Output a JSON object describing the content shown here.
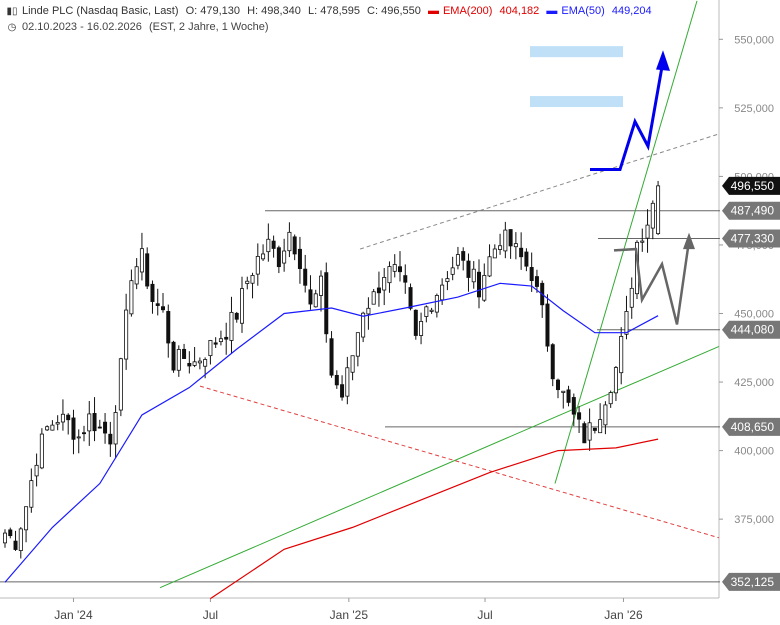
{
  "header": {
    "instrument": "Linde PLC (Nasdaq Basic, Last)",
    "open": "O: 479,130",
    "high": "H: 498,340",
    "low": "L: 478,595",
    "close": "C: 496,550",
    "ema200_label": "EMA(200)",
    "ema200_value": "404,182",
    "ema50_label": "EMA(50)",
    "ema50_value": "449,204",
    "range": "02.10.2023 - 16.02.2026",
    "info": "(EST, 2 Jahre, 1 Woche)",
    "chart_icon": "candlestick-icon",
    "clock_icon": "clock-icon"
  },
  "colors": {
    "ema200": "#e00000",
    "ema50": "#1a1aff",
    "candle": "#111111",
    "trend_green": "#33aa33",
    "support_red": "#e04040",
    "resistance_dash": "#888888",
    "level_line": "#666666",
    "projection_blue": "#0000ee",
    "projection_gray": "#666666",
    "target_box": "#bfe0f7",
    "price_tag_current": "#111111",
    "price_tag_level": "#777777"
  },
  "chart_data": {
    "type": "candlestick",
    "y_ticks": [
      "550,000",
      "525,000",
      "500,000",
      "475,000",
      "450,000",
      "425,000",
      "400,000",
      "375,000"
    ],
    "y_tick_values": [
      550,
      525,
      500,
      475,
      450,
      425,
      400,
      375
    ],
    "x_ticks": [
      "Jan '24",
      "Jul",
      "Jan '25",
      "Jul",
      "Jan '26"
    ],
    "x_tick_dates": [
      "2024-01-01",
      "2024-07-01",
      "2025-01-01",
      "2025-07-01",
      "2026-01-01"
    ],
    "x_range": [
      "2023-10-02",
      "2026-04-30"
    ],
    "y_range": [
      347,
      564
    ],
    "price_levels": [
      {
        "label": "496,550",
        "value": 496.55,
        "kind": "current"
      },
      {
        "label": "487,490",
        "value": 487.49,
        "kind": "level"
      },
      {
        "label": "477,330",
        "value": 477.33,
        "kind": "level"
      },
      {
        "label": "444,080",
        "value": 444.08,
        "kind": "level"
      },
      {
        "label": "408,650",
        "value": 408.65,
        "kind": "level"
      },
      {
        "label": "352,125",
        "value": 352.125,
        "kind": "level"
      }
    ],
    "weekly_close": [
      {
        "date": "2023-10-02",
        "close": 370
      },
      {
        "date": "2023-10-16",
        "close": 367
      },
      {
        "date": "2023-10-30",
        "close": 380
      },
      {
        "date": "2023-11-13",
        "close": 398
      },
      {
        "date": "2023-11-27",
        "close": 408
      },
      {
        "date": "2023-12-11",
        "close": 412
      },
      {
        "date": "2023-12-25",
        "close": 410
      },
      {
        "date": "2024-01-08",
        "close": 405
      },
      {
        "date": "2024-01-22",
        "close": 412
      },
      {
        "date": "2024-02-05",
        "close": 408
      },
      {
        "date": "2024-02-19",
        "close": 405
      },
      {
        "date": "2024-03-04",
        "close": 430
      },
      {
        "date": "2024-03-18",
        "close": 465
      },
      {
        "date": "2024-04-01",
        "close": 470
      },
      {
        "date": "2024-04-15",
        "close": 455
      },
      {
        "date": "2024-04-29",
        "close": 450
      },
      {
        "date": "2024-05-13",
        "close": 432
      },
      {
        "date": "2024-05-27",
        "close": 434
      },
      {
        "date": "2024-06-10",
        "close": 432
      },
      {
        "date": "2024-06-24",
        "close": 436
      },
      {
        "date": "2024-07-08",
        "close": 440
      },
      {
        "date": "2024-07-22",
        "close": 444
      },
      {
        "date": "2024-08-05",
        "close": 450
      },
      {
        "date": "2024-08-19",
        "close": 462
      },
      {
        "date": "2024-09-02",
        "close": 470
      },
      {
        "date": "2024-09-16",
        "close": 475
      },
      {
        "date": "2024-09-30",
        "close": 470
      },
      {
        "date": "2024-10-14",
        "close": 480
      },
      {
        "date": "2024-10-28",
        "close": 470
      },
      {
        "date": "2024-11-11",
        "close": 452
      },
      {
        "date": "2024-11-25",
        "close": 460
      },
      {
        "date": "2024-12-09",
        "close": 428
      },
      {
        "date": "2024-12-23",
        "close": 420
      },
      {
        "date": "2025-01-06",
        "close": 435
      },
      {
        "date": "2025-01-20",
        "close": 452
      },
      {
        "date": "2025-02-03",
        "close": 456
      },
      {
        "date": "2025-02-17",
        "close": 465
      },
      {
        "date": "2025-03-03",
        "close": 465
      },
      {
        "date": "2025-03-17",
        "close": 458
      },
      {
        "date": "2025-03-31",
        "close": 440
      },
      {
        "date": "2025-04-14",
        "close": 452
      },
      {
        "date": "2025-04-28",
        "close": 458
      },
      {
        "date": "2025-05-12",
        "close": 465
      },
      {
        "date": "2025-05-26",
        "close": 470
      },
      {
        "date": "2025-06-09",
        "close": 465
      },
      {
        "date": "2025-06-23",
        "close": 460
      },
      {
        "date": "2025-07-07",
        "close": 470
      },
      {
        "date": "2025-07-21",
        "close": 478
      },
      {
        "date": "2025-08-04",
        "close": 475
      },
      {
        "date": "2025-08-18",
        "close": 470
      },
      {
        "date": "2025-09-01",
        "close": 465
      },
      {
        "date": "2025-09-15",
        "close": 450
      },
      {
        "date": "2025-09-29",
        "close": 430
      },
      {
        "date": "2025-10-13",
        "close": 420
      },
      {
        "date": "2025-10-27",
        "close": 412
      },
      {
        "date": "2025-11-10",
        "close": 405
      },
      {
        "date": "2025-11-24",
        "close": 410
      },
      {
        "date": "2025-12-08",
        "close": 420
      },
      {
        "date": "2025-12-22",
        "close": 430
      },
      {
        "date": "2026-01-05",
        "close": 448
      },
      {
        "date": "2026-01-19",
        "close": 476
      },
      {
        "date": "2026-02-02",
        "close": 484
      },
      {
        "date": "2026-02-16",
        "close": 496.55
      }
    ],
    "ema50": [
      {
        "date": "2023-10-02",
        "value": 352
      },
      {
        "date": "2023-12-04",
        "value": 372
      },
      {
        "date": "2024-02-05",
        "value": 388
      },
      {
        "date": "2024-04-01",
        "value": 413
      },
      {
        "date": "2024-06-03",
        "value": 423
      },
      {
        "date": "2024-08-05",
        "value": 437
      },
      {
        "date": "2024-10-07",
        "value": 450
      },
      {
        "date": "2024-12-09",
        "value": 452
      },
      {
        "date": "2025-01-20",
        "value": 449
      },
      {
        "date": "2025-03-17",
        "value": 452
      },
      {
        "date": "2025-05-26",
        "value": 456
      },
      {
        "date": "2025-07-21",
        "value": 461
      },
      {
        "date": "2025-09-01",
        "value": 460
      },
      {
        "date": "2025-10-13",
        "value": 451
      },
      {
        "date": "2025-11-24",
        "value": 443
      },
      {
        "date": "2026-01-05",
        "value": 443
      },
      {
        "date": "2026-02-16",
        "value": 449.204
      }
    ],
    "ema200": [
      {
        "date": "2024-07-01",
        "value": 346
      },
      {
        "date": "2024-10-07",
        "value": 364
      },
      {
        "date": "2025-01-06",
        "value": 372
      },
      {
        "date": "2025-04-07",
        "value": 382
      },
      {
        "date": "2025-07-07",
        "value": 392
      },
      {
        "date": "2025-10-06",
        "value": 400
      },
      {
        "date": "2025-12-22",
        "value": 401
      },
      {
        "date": "2026-02-16",
        "value": 404.182
      }
    ]
  }
}
